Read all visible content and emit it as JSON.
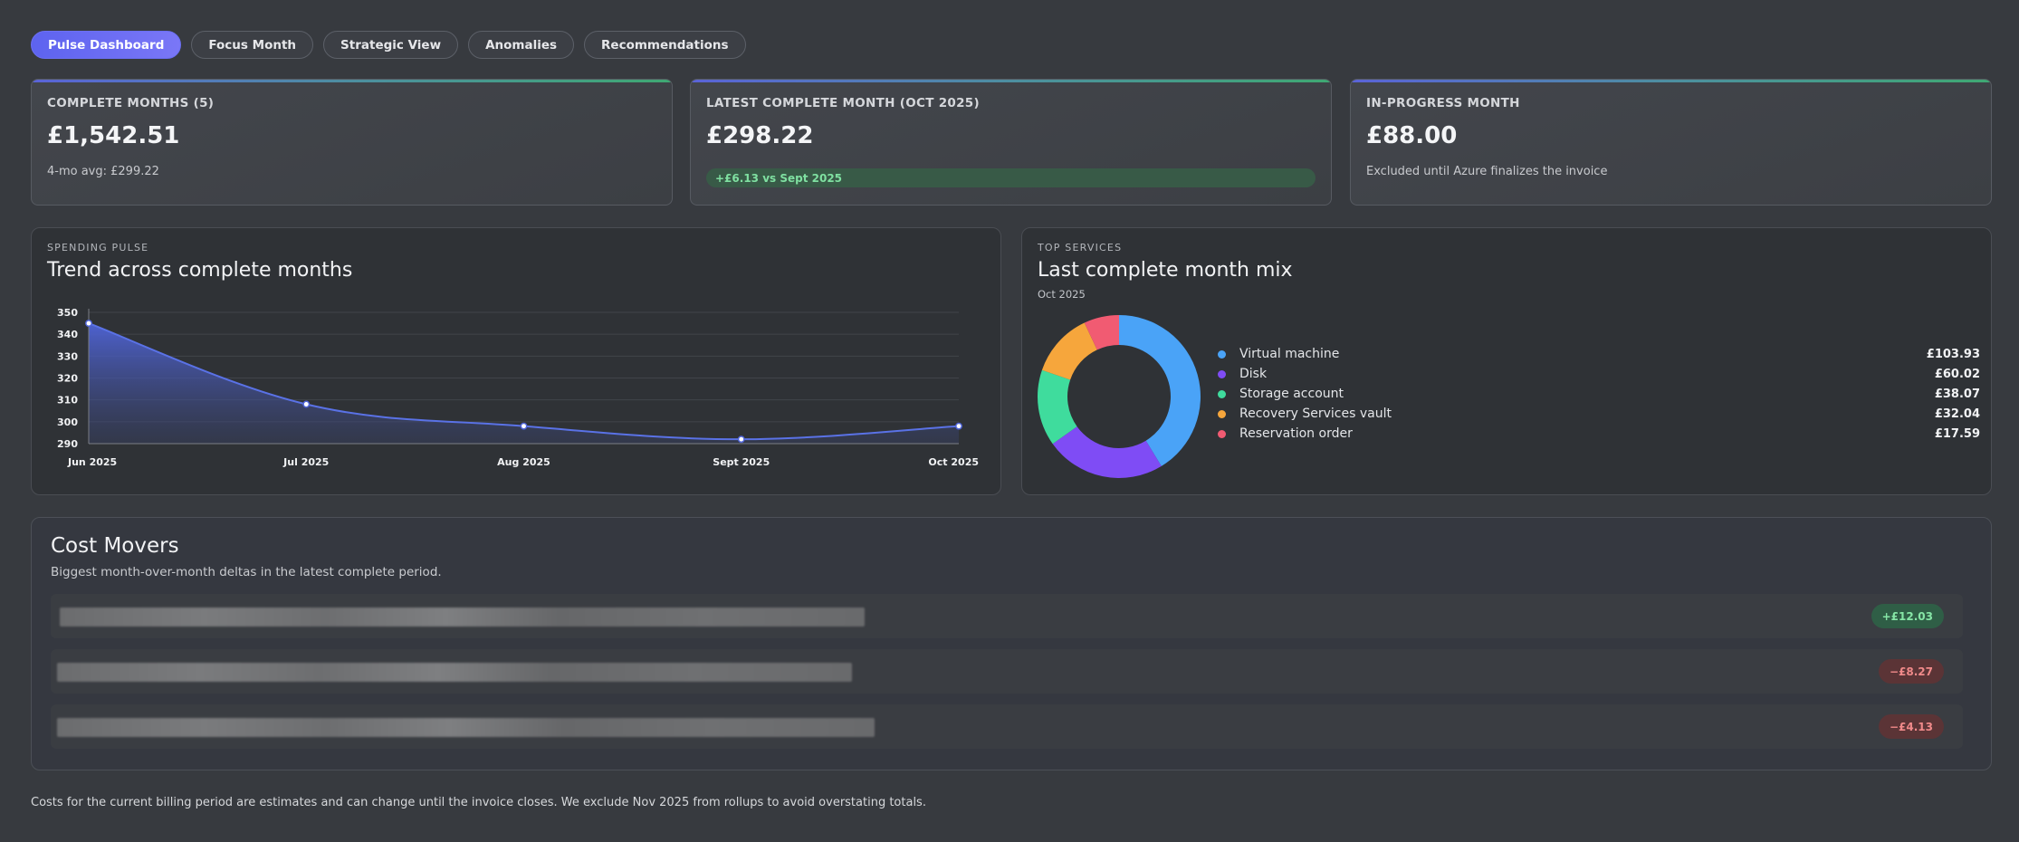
{
  "tabs": [
    "Pulse Dashboard",
    "Focus Month",
    "Strategic View",
    "Anomalies",
    "Recommendations"
  ],
  "kpis": [
    {
      "label": "COMPLETE MONTHS (5)",
      "value": "£1,542.51",
      "sub": "4-mo avg: £299.22"
    },
    {
      "label": "LATEST COMPLETE MONTH (OCT 2025)",
      "value": "£298.22",
      "pill": "+£6.13 vs Sept 2025"
    },
    {
      "label": "IN-PROGRESS MONTH",
      "value": "£88.00",
      "sub": "Excluded until Azure finalizes the invoice"
    }
  ],
  "pulse": {
    "eyebrow": "SPENDING PULSE",
    "title": "Trend across complete months"
  },
  "chart_data": {
    "type": "area",
    "categories": [
      "Jun 2025",
      "Jul 2025",
      "Aug 2025",
      "Sept 2025",
      "Oct 2025"
    ],
    "values": [
      345,
      308,
      298,
      292,
      298
    ],
    "ylim": [
      290,
      350
    ],
    "yticks": [
      290,
      300,
      310,
      320,
      330,
      340,
      350
    ],
    "grid": true,
    "line_color": "#5a72e6"
  },
  "services": {
    "eyebrow": "TOP SERVICES",
    "title": "Last complete month mix",
    "subtitle": "Oct 2025",
    "chart_data": {
      "type": "pie",
      "labels": [
        "Virtual machine",
        "Disk",
        "Storage account",
        "Recovery Services vault",
        "Reservation order"
      ],
      "values": [
        103.93,
        60.02,
        38.07,
        32.04,
        17.59
      ],
      "display_values": [
        "£103.93",
        "£60.02",
        "£38.07",
        "£32.04",
        "£17.59"
      ],
      "colors": [
        "#4aa3f7",
        "#7f4cf5",
        "#3fdc9d",
        "#f6a63c",
        "#f15b72"
      ]
    }
  },
  "movers": {
    "title": "Cost Movers",
    "subtitle": "Biggest month-over-month deltas in the latest complete period.",
    "rows": [
      {
        "delta": "+£12.03",
        "direction": "up"
      },
      {
        "delta": "−£8.27",
        "direction": "down"
      },
      {
        "delta": "−£4.13",
        "direction": "down"
      }
    ]
  },
  "footer": "Costs for the current billing period are estimates and can change until the invoice closes. We exclude Nov 2025 from rollups to avoid overstating totals."
}
